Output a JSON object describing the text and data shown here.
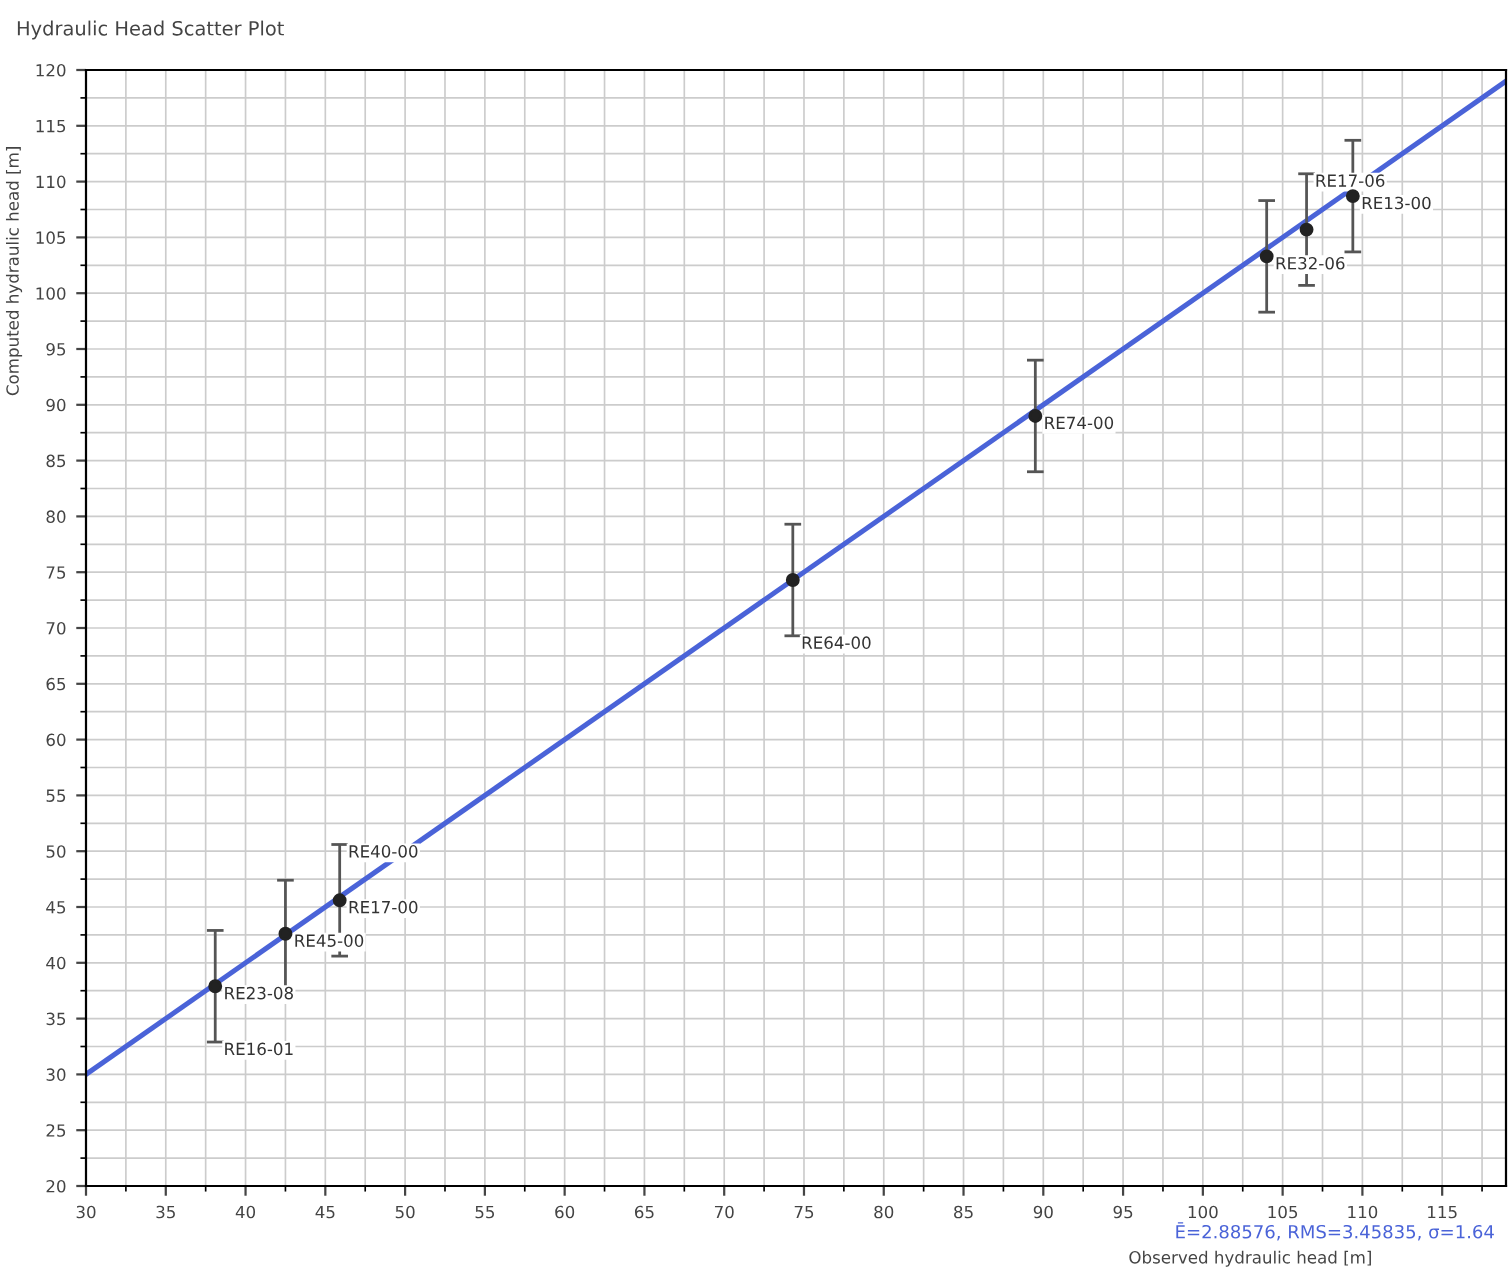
{
  "chart_data": {
    "type": "scatter",
    "title": "Hydraulic Head Scatter Plot",
    "xlabel": "Observed hydraulic head [m]",
    "ylabel": "Computed hydraulic head [m]",
    "series": [
      {
        "color": "#222222",
        "marker": "circle",
        "x": [
          38.1,
          42.5,
          45.9,
          74.3,
          89.5,
          104,
          106.5,
          109.4
        ],
        "values": [
          37.9,
          42.6,
          45.6,
          74.3,
          89,
          103.3,
          105.7,
          108.7
        ],
        "errors": [
          5,
          4.8,
          5,
          5,
          5,
          5,
          5,
          5
        ]
      },
      {
        "type": "line",
        "color": "#4a63d8",
        "x": [
          30,
          119
        ],
        "values": [
          30,
          119
        ]
      }
    ],
    "annotations": [
      {
        "text": "RE23-08",
        "x": 38.1,
        "y": 37.9
      },
      {
        "text": "RE16-01",
        "x": 38.1,
        "y": 32.9
      },
      {
        "text": "RE45-00",
        "x": 42.5,
        "y": 42.6
      },
      {
        "text": "RE17-00",
        "x": 45.9,
        "y": 45.6
      },
      {
        "text": "RE40-00",
        "x": 45.9,
        "y": 50.6
      },
      {
        "text": "RE64-00",
        "x": 74.3,
        "y": 69.3
      },
      {
        "text": "RE74-00",
        "x": 89.5,
        "y": 89
      },
      {
        "text": "RE32-06",
        "x": 104,
        "y": 103.3
      },
      {
        "text": "RE17-06",
        "x": 106.5,
        "y": 110.7
      },
      {
        "text": "RE13-00",
        "x": 109.4,
        "y": 108.7
      },
      "Ē=2.88576, RMS=3.45835, σ=1.64"
    ],
    "xlim": [
      30,
      119
    ],
    "ylim": [
      20,
      120
    ],
    "xticks": [
      30,
      35,
      40,
      45,
      50,
      55,
      60,
      65,
      70,
      75,
      80,
      85,
      90,
      95,
      100,
      105,
      110,
      115
    ],
    "yticks": [
      20,
      25,
      30,
      35,
      40,
      45,
      50,
      55,
      60,
      65,
      70,
      75,
      80,
      85,
      90,
      95,
      100,
      105,
      110,
      115,
      120
    ],
    "grid": true,
    "line_style": "solid"
  }
}
